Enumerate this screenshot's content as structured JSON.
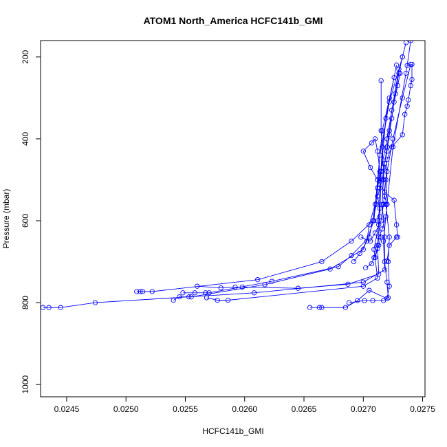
{
  "chart_data": {
    "type": "line",
    "title": "ATOM1 North_America HCFC141b_GMI",
    "xlabel": "HCFC141b_GMI",
    "ylabel": "Pressure (mbar)",
    "xlim": [
      0.02428,
      0.02752
    ],
    "ylim": [
      1030,
      160
    ],
    "y_reversed": true,
    "x_ticks": [
      "0.0245",
      "0.0250",
      "0.0255",
      "0.0260",
      "0.0265",
      "0.0270",
      "0.0275"
    ],
    "y_ticks": [
      "200",
      "400",
      "600",
      "800",
      "1000"
    ],
    "x_tick_values": [
      0.0245,
      0.025,
      0.0255,
      0.026,
      0.0265,
      0.027,
      0.0275
    ],
    "y_tick_values": [
      200,
      400,
      600,
      800,
      1000
    ],
    "series_color": "#0000ff",
    "marker": "open-circle",
    "grid": false,
    "series": [
      {
        "points": [
          [
            0.0243,
            812
          ],
          [
            0.02435,
            812
          ],
          [
            0.02445,
            812
          ],
          [
            0.02474,
            800
          ],
          [
            0.02608,
            776
          ],
          [
            0.027,
            750
          ],
          [
            0.02718,
            720
          ],
          [
            0.02717,
            650
          ],
          [
            0.0272,
            560
          ],
          [
            0.02725,
            420
          ],
          [
            0.02736,
            240
          ],
          [
            0.0274,
            160
          ]
        ]
      },
      {
        "points": [
          [
            0.02509,
            773
          ],
          [
            0.02512,
            773
          ],
          [
            0.02514,
            773
          ],
          [
            0.02522,
            773
          ],
          [
            0.02611,
            744
          ],
          [
            0.02665,
            700
          ],
          [
            0.0269,
            650
          ],
          [
            0.02708,
            600
          ],
          [
            0.02712,
            520
          ],
          [
            0.0272,
            400
          ],
          [
            0.0273,
            230
          ]
        ]
      },
      {
        "points": [
          [
            0.0254,
            794
          ],
          [
            0.02545,
            786
          ],
          [
            0.02553,
            786
          ],
          [
            0.02555,
            786
          ],
          [
            0.02617,
            756
          ],
          [
            0.02672,
            718
          ],
          [
            0.027,
            670
          ],
          [
            0.02709,
            600
          ],
          [
            0.02712,
            500
          ],
          [
            0.02716,
            380
          ],
          [
            0.02726,
            250
          ]
        ]
      },
      {
        "points": [
          [
            0.02548,
            776
          ],
          [
            0.02558,
            776
          ],
          [
            0.02567,
            776
          ],
          [
            0.0257,
            776
          ],
          [
            0.02623,
            748
          ],
          [
            0.02679,
            712
          ],
          [
            0.0269,
            685
          ],
          [
            0.02705,
            640
          ],
          [
            0.02711,
            560
          ],
          [
            0.02714,
            440
          ],
          [
            0.02722,
            310
          ],
          [
            0.02733,
            200
          ]
        ]
      },
      {
        "points": [
          [
            0.0256,
            760
          ],
          [
            0.0258,
            764
          ],
          [
            0.02592,
            762
          ],
          [
            0.02598,
            762
          ],
          [
            0.02645,
            765
          ],
          [
            0.02687,
            755
          ],
          [
            0.02713,
            730
          ],
          [
            0.02712,
            660
          ],
          [
            0.02714,
            590
          ],
          [
            0.02715,
            480
          ],
          [
            0.02719,
            350
          ],
          [
            0.02728,
            220
          ]
        ]
      },
      {
        "points": [
          [
            0.02568,
            788
          ],
          [
            0.02577,
            794
          ],
          [
            0.02586,
            794
          ],
          [
            0.027,
            760
          ],
          [
            0.02712,
            740
          ],
          [
            0.02709,
            670
          ],
          [
            0.02713,
            610
          ],
          [
            0.02714,
            520
          ],
          [
            0.02716,
            420
          ],
          [
            0.02722,
            300
          ]
        ]
      },
      {
        "points": [
          [
            0.02655,
            812
          ],
          [
            0.02663,
            812
          ],
          [
            0.02665,
            812
          ],
          [
            0.02685,
            812
          ],
          [
            0.02695,
            795
          ],
          [
            0.02705,
            770
          ],
          [
            0.0272,
            790
          ],
          [
            0.02722,
            760
          ],
          [
            0.02721,
            700
          ],
          [
            0.02722,
            640
          ],
          [
            0.02719,
            560
          ],
          [
            0.0272,
            480
          ],
          [
            0.02725,
            400
          ],
          [
            0.02733,
            300
          ],
          [
            0.0274,
            218
          ]
        ]
      },
      {
        "points": [
          [
            0.02688,
            800
          ],
          [
            0.02701,
            795
          ],
          [
            0.02708,
            795
          ],
          [
            0.02717,
            795
          ],
          [
            0.02721,
            788
          ],
          [
            0.0272,
            750
          ],
          [
            0.02718,
            700
          ],
          [
            0.02718,
            640
          ],
          [
            0.02716,
            560
          ],
          [
            0.02717,
            470
          ],
          [
            0.02715,
            380
          ],
          [
            0.02715,
            258
          ]
        ]
      },
      {
        "points": [
          [
            0.02692,
            700
          ],
          [
            0.02697,
            680
          ],
          [
            0.02703,
            650
          ],
          [
            0.02705,
            610
          ],
          [
            0.0271,
            560
          ],
          [
            0.02712,
            520
          ],
          [
            0.02714,
            480
          ],
          [
            0.02712,
            430
          ],
          [
            0.0271,
            400
          ],
          [
            0.02707,
            410
          ],
          [
            0.027,
            430
          ],
          [
            0.02706,
            470
          ],
          [
            0.02712,
            500
          ],
          [
            0.02718,
            530
          ],
          [
            0.02726,
            550
          ],
          [
            0.02728,
            610
          ],
          [
            0.02729,
            640
          ],
          [
            0.02728,
            640
          ],
          [
            0.02722,
            660
          ],
          [
            0.0272,
            698
          ]
        ]
      },
      {
        "points": [
          [
            0.02698,
            640
          ],
          [
            0.02706,
            650
          ],
          [
            0.0271,
            630
          ],
          [
            0.02715,
            600
          ],
          [
            0.02717,
            560
          ],
          [
            0.02719,
            500
          ],
          [
            0.0272,
            450
          ],
          [
            0.02724,
            420
          ],
          [
            0.02733,
            390
          ],
          [
            0.02735,
            340
          ],
          [
            0.02737,
            320
          ],
          [
            0.02738,
            305
          ],
          [
            0.0274,
            270
          ],
          [
            0.02741,
            255
          ],
          [
            0.02741,
            218
          ],
          [
            0.02737,
            221
          ]
        ]
      },
      {
        "points": [
          [
            0.02702,
            715
          ],
          [
            0.02707,
            705
          ],
          [
            0.02709,
            690
          ],
          [
            0.02713,
            660
          ],
          [
            0.02715,
            640
          ],
          [
            0.02712,
            600
          ],
          [
            0.02714,
            570
          ],
          [
            0.02712,
            540
          ],
          [
            0.02716,
            500
          ],
          [
            0.02718,
            460
          ],
          [
            0.0272,
            430
          ],
          [
            0.02722,
            390
          ],
          [
            0.02724,
            350
          ],
          [
            0.02726,
            310
          ],
          [
            0.02729,
            270
          ],
          [
            0.02731,
            240
          ]
        ]
      },
      {
        "points": [
          [
            0.0271,
            690
          ],
          [
            0.02712,
            668
          ],
          [
            0.02713,
            640
          ],
          [
            0.02716,
            620
          ],
          [
            0.02719,
            590
          ],
          [
            0.0272,
            560
          ],
          [
            0.02718,
            540
          ],
          [
            0.02717,
            500
          ],
          [
            0.02718,
            460
          ],
          [
            0.0272,
            420
          ],
          [
            0.02722,
            380
          ],
          [
            0.02724,
            330
          ],
          [
            0.02727,
            290
          ],
          [
            0.0273,
            240
          ],
          [
            0.02733,
            200
          ],
          [
            0.02736,
            165
          ]
        ]
      }
    ]
  }
}
